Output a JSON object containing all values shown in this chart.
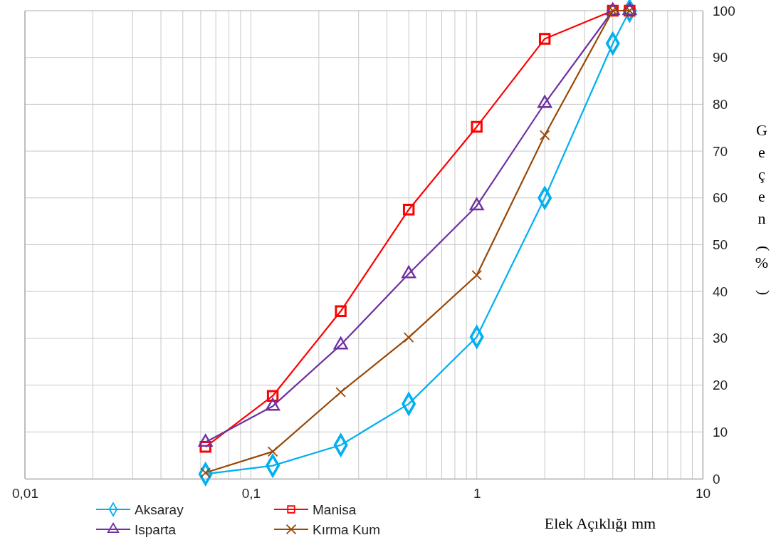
{
  "chart_data": {
    "type": "line",
    "xlabel": "Elek Açıklığı mm",
    "ylabel": "Geçen (%)",
    "log": "x",
    "xlim": [
      0.01,
      10
    ],
    "xticks": [
      {
        "value": 0.01,
        "label": "0,01"
      },
      {
        "value": 0.02,
        "label": null
      },
      {
        "value": 0.03,
        "label": null
      },
      {
        "value": 0.04,
        "label": null
      },
      {
        "value": 0.05,
        "label": null
      },
      {
        "value": 0.06,
        "label": null
      },
      {
        "value": 0.07,
        "label": null
      },
      {
        "value": 0.08,
        "label": null
      },
      {
        "value": 0.09,
        "label": null
      },
      {
        "value": 0.1,
        "label": "0,1"
      },
      {
        "value": 0.2,
        "label": null
      },
      {
        "value": 0.3,
        "label": null
      },
      {
        "value": 0.4,
        "label": null
      },
      {
        "value": 0.5,
        "label": null
      },
      {
        "value": 0.6,
        "label": null
      },
      {
        "value": 0.7,
        "label": null
      },
      {
        "value": 0.8,
        "label": null
      },
      {
        "value": 0.9,
        "label": null
      },
      {
        "value": 1,
        "label": "1"
      },
      {
        "value": 2,
        "label": null
      },
      {
        "value": 3,
        "label": null
      },
      {
        "value": 4,
        "label": null
      },
      {
        "value": 5,
        "label": null
      },
      {
        "value": 6,
        "label": null
      },
      {
        "value": 7,
        "label": null
      },
      {
        "value": 8,
        "label": null
      },
      {
        "value": 9,
        "label": null
      },
      {
        "value": 10,
        "label": "10"
      }
    ],
    "ylim": [
      0,
      100
    ],
    "yticks": [
      0,
      10,
      20,
      30,
      40,
      50,
      60,
      70,
      80,
      90,
      100
    ],
    "grid": true,
    "legend": "bottom",
    "line_style": "solid",
    "x": [
      0.063,
      0.125,
      0.25,
      0.5,
      1,
      2,
      4,
      4.75
    ],
    "series": [
      {
        "name": "Aksaray",
        "color": "#00b0f0",
        "marker": "diamond",
        "values": [
          1,
          2.8,
          7.2,
          16,
          30.3,
          60,
          93,
          100
        ]
      },
      {
        "name": "Manisa",
        "color": "#ff0000",
        "marker": "square",
        "values": [
          6.8,
          17.7,
          35.8,
          57.5,
          75.2,
          94,
          100,
          100
        ]
      },
      {
        "name": "Isparta",
        "color": "#7030a0",
        "marker": "triangle",
        "values": [
          7.8,
          15.5,
          28.6,
          43.8,
          58.3,
          80.2,
          100,
          100
        ]
      },
      {
        "name": "Kırma Kum",
        "color": "#984807",
        "marker": "cross",
        "values": [
          1.3,
          5.8,
          18.5,
          30.2,
          43.5,
          73.4,
          100,
          100
        ]
      }
    ]
  }
}
